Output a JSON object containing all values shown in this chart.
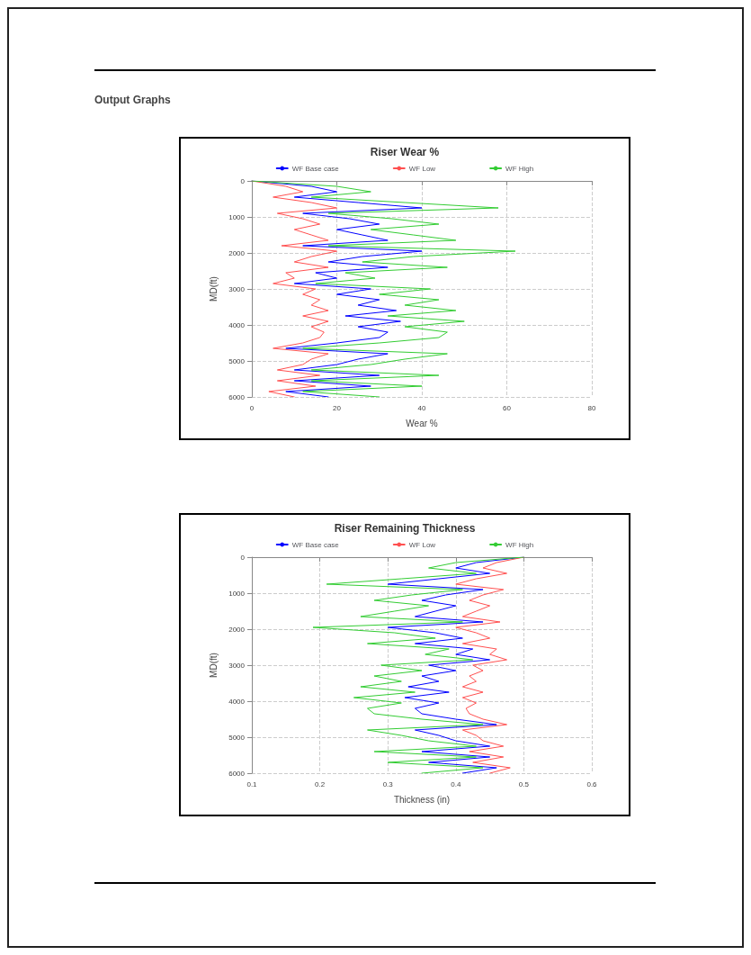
{
  "chart_data": [
    {
      "type": "line",
      "title": "Riser Wear %",
      "xlabel": "Wear %",
      "ylabel": "MD(ft)",
      "annotations": [
        "Output Graphs"
      ],
      "xlim": [
        0,
        80
      ],
      "xticks": [
        0,
        20,
        40,
        60,
        80
      ],
      "ylim": [
        6000,
        0
      ],
      "yticks": [
        0,
        1000,
        2000,
        3000,
        4000,
        5000,
        6000
      ],
      "grid": true,
      "legend": "top",
      "marker": "none",
      "line_style": "solid",
      "series": [
        {
          "name": "WF Base case",
          "color": "#0000ff",
          "x": [
            0,
            14,
            20,
            10,
            25,
            40,
            12,
            23,
            30,
            20,
            26,
            32,
            12,
            40,
            26,
            18,
            32,
            15,
            20,
            10,
            28,
            20,
            30,
            25,
            34,
            22,
            35,
            25,
            32,
            30,
            20,
            8,
            32,
            25,
            20,
            10,
            30,
            10,
            28,
            8,
            18
          ],
          "values": [
            0,
            150,
            300,
            450,
            600,
            750,
            900,
            1050,
            1200,
            1350,
            1500,
            1650,
            1800,
            1950,
            2100,
            2250,
            2400,
            2550,
            2700,
            2850,
            3000,
            3150,
            3300,
            3450,
            3600,
            3750,
            3900,
            4050,
            4200,
            4350,
            4500,
            4650,
            4800,
            4950,
            5100,
            5250,
            5400,
            5550,
            5700,
            5850,
            6000
          ]
        },
        {
          "name": "WF Low",
          "color": "#ff5050",
          "x": [
            0,
            8,
            12,
            5,
            14,
            20,
            6,
            12,
            16,
            10,
            14,
            18,
            7,
            20,
            14,
            10,
            18,
            8,
            10,
            5,
            15,
            12,
            16,
            14,
            18,
            12,
            18,
            14,
            17,
            16,
            12,
            5,
            18,
            14,
            12,
            6,
            16,
            6,
            15,
            4,
            10
          ],
          "values": [
            0,
            150,
            300,
            450,
            600,
            750,
            900,
            1050,
            1200,
            1350,
            1500,
            1650,
            1800,
            1950,
            2100,
            2250,
            2400,
            2550,
            2700,
            2850,
            3000,
            3150,
            3300,
            3450,
            3600,
            3750,
            3900,
            4050,
            4200,
            4350,
            4500,
            4650,
            4800,
            4950,
            5100,
            5250,
            5400,
            5550,
            5700,
            5850,
            6000
          ]
        },
        {
          "name": "WF High",
          "color": "#33cc33",
          "x": [
            0,
            20,
            28,
            14,
            36,
            58,
            18,
            33,
            44,
            28,
            38,
            48,
            18,
            62,
            38,
            26,
            46,
            22,
            29,
            15,
            42,
            30,
            44,
            36,
            48,
            32,
            50,
            36,
            46,
            44,
            30,
            12,
            46,
            36,
            28,
            14,
            44,
            14,
            40,
            12,
            30
          ],
          "values": [
            0,
            150,
            300,
            450,
            600,
            750,
            900,
            1050,
            1200,
            1350,
            1500,
            1650,
            1800,
            1950,
            2100,
            2250,
            2400,
            2550,
            2700,
            2850,
            3000,
            3150,
            3300,
            3450,
            3600,
            3750,
            3900,
            4050,
            4200,
            4350,
            4500,
            4650,
            4800,
            4950,
            5100,
            5250,
            5400,
            5550,
            5700,
            5850,
            6000
          ]
        }
      ]
    },
    {
      "type": "line",
      "title": "Riser Remaining Thickness",
      "xlabel": "Thickness (in)",
      "ylabel": "MD(ft)",
      "xlim": [
        0.1,
        0.6
      ],
      "xticks": [
        0.1,
        0.2,
        0.3,
        0.4,
        0.5,
        0.6
      ],
      "ylim": [
        6000,
        0
      ],
      "yticks": [
        0,
        1000,
        2000,
        3000,
        4000,
        5000,
        6000
      ],
      "grid": true,
      "legend": "top",
      "marker": "none",
      "line_style": "solid",
      "series": [
        {
          "name": "WF Base case",
          "color": "#0000ff",
          "x": [
            0.5,
            0.43,
            0.4,
            0.45,
            0.375,
            0.3,
            0.44,
            0.385,
            0.35,
            0.4,
            0.37,
            0.34,
            0.44,
            0.3,
            0.37,
            0.41,
            0.34,
            0.425,
            0.4,
            0.45,
            0.36,
            0.4,
            0.35,
            0.375,
            0.33,
            0.39,
            0.325,
            0.375,
            0.34,
            0.35,
            0.4,
            0.46,
            0.34,
            0.375,
            0.4,
            0.45,
            0.35,
            0.45,
            0.36,
            0.46,
            0.41
          ],
          "values": [
            0,
            150,
            300,
            450,
            600,
            750,
            900,
            1050,
            1200,
            1350,
            1500,
            1650,
            1800,
            1950,
            2100,
            2250,
            2400,
            2550,
            2700,
            2850,
            3000,
            3150,
            3300,
            3450,
            3600,
            3750,
            3900,
            4050,
            4200,
            4350,
            4500,
            4650,
            4800,
            4950,
            5100,
            5250,
            5400,
            5550,
            5700,
            5850,
            6000
          ]
        },
        {
          "name": "WF Low",
          "color": "#ff5050",
          "x": [
            0.5,
            0.46,
            0.44,
            0.475,
            0.43,
            0.4,
            0.47,
            0.44,
            0.42,
            0.45,
            0.43,
            0.41,
            0.465,
            0.4,
            0.43,
            0.45,
            0.41,
            0.46,
            0.45,
            0.475,
            0.425,
            0.44,
            0.42,
            0.43,
            0.41,
            0.44,
            0.41,
            0.43,
            0.415,
            0.42,
            0.44,
            0.475,
            0.41,
            0.43,
            0.44,
            0.47,
            0.42,
            0.47,
            0.425,
            0.48,
            0.45
          ],
          "values": [
            0,
            150,
            300,
            450,
            600,
            750,
            900,
            1050,
            1200,
            1350,
            1500,
            1650,
            1800,
            1950,
            2100,
            2250,
            2400,
            2550,
            2700,
            2850,
            3000,
            3150,
            3300,
            3450,
            3600,
            3750,
            3900,
            4050,
            4200,
            4350,
            4500,
            4650,
            4800,
            4950,
            5100,
            5250,
            5400,
            5550,
            5700,
            5850,
            6000
          ]
        },
        {
          "name": "WF High",
          "color": "#33cc33",
          "x": [
            0.5,
            0.4,
            0.36,
            0.43,
            0.32,
            0.21,
            0.41,
            0.335,
            0.28,
            0.36,
            0.31,
            0.26,
            0.41,
            0.19,
            0.31,
            0.37,
            0.27,
            0.39,
            0.355,
            0.425,
            0.29,
            0.35,
            0.28,
            0.32,
            0.26,
            0.34,
            0.25,
            0.32,
            0.27,
            0.28,
            0.35,
            0.44,
            0.27,
            0.32,
            0.36,
            0.43,
            0.28,
            0.43,
            0.3,
            0.44,
            0.35
          ],
          "values": [
            0,
            150,
            300,
            450,
            600,
            750,
            900,
            1050,
            1200,
            1350,
            1500,
            1650,
            1800,
            1950,
            2100,
            2250,
            2400,
            2550,
            2700,
            2850,
            3000,
            3150,
            3300,
            3450,
            3600,
            3750,
            3900,
            4050,
            4200,
            4350,
            4500,
            4650,
            4800,
            4950,
            5100,
            5250,
            5400,
            5550,
            5700,
            5850,
            6000
          ]
        }
      ]
    }
  ]
}
